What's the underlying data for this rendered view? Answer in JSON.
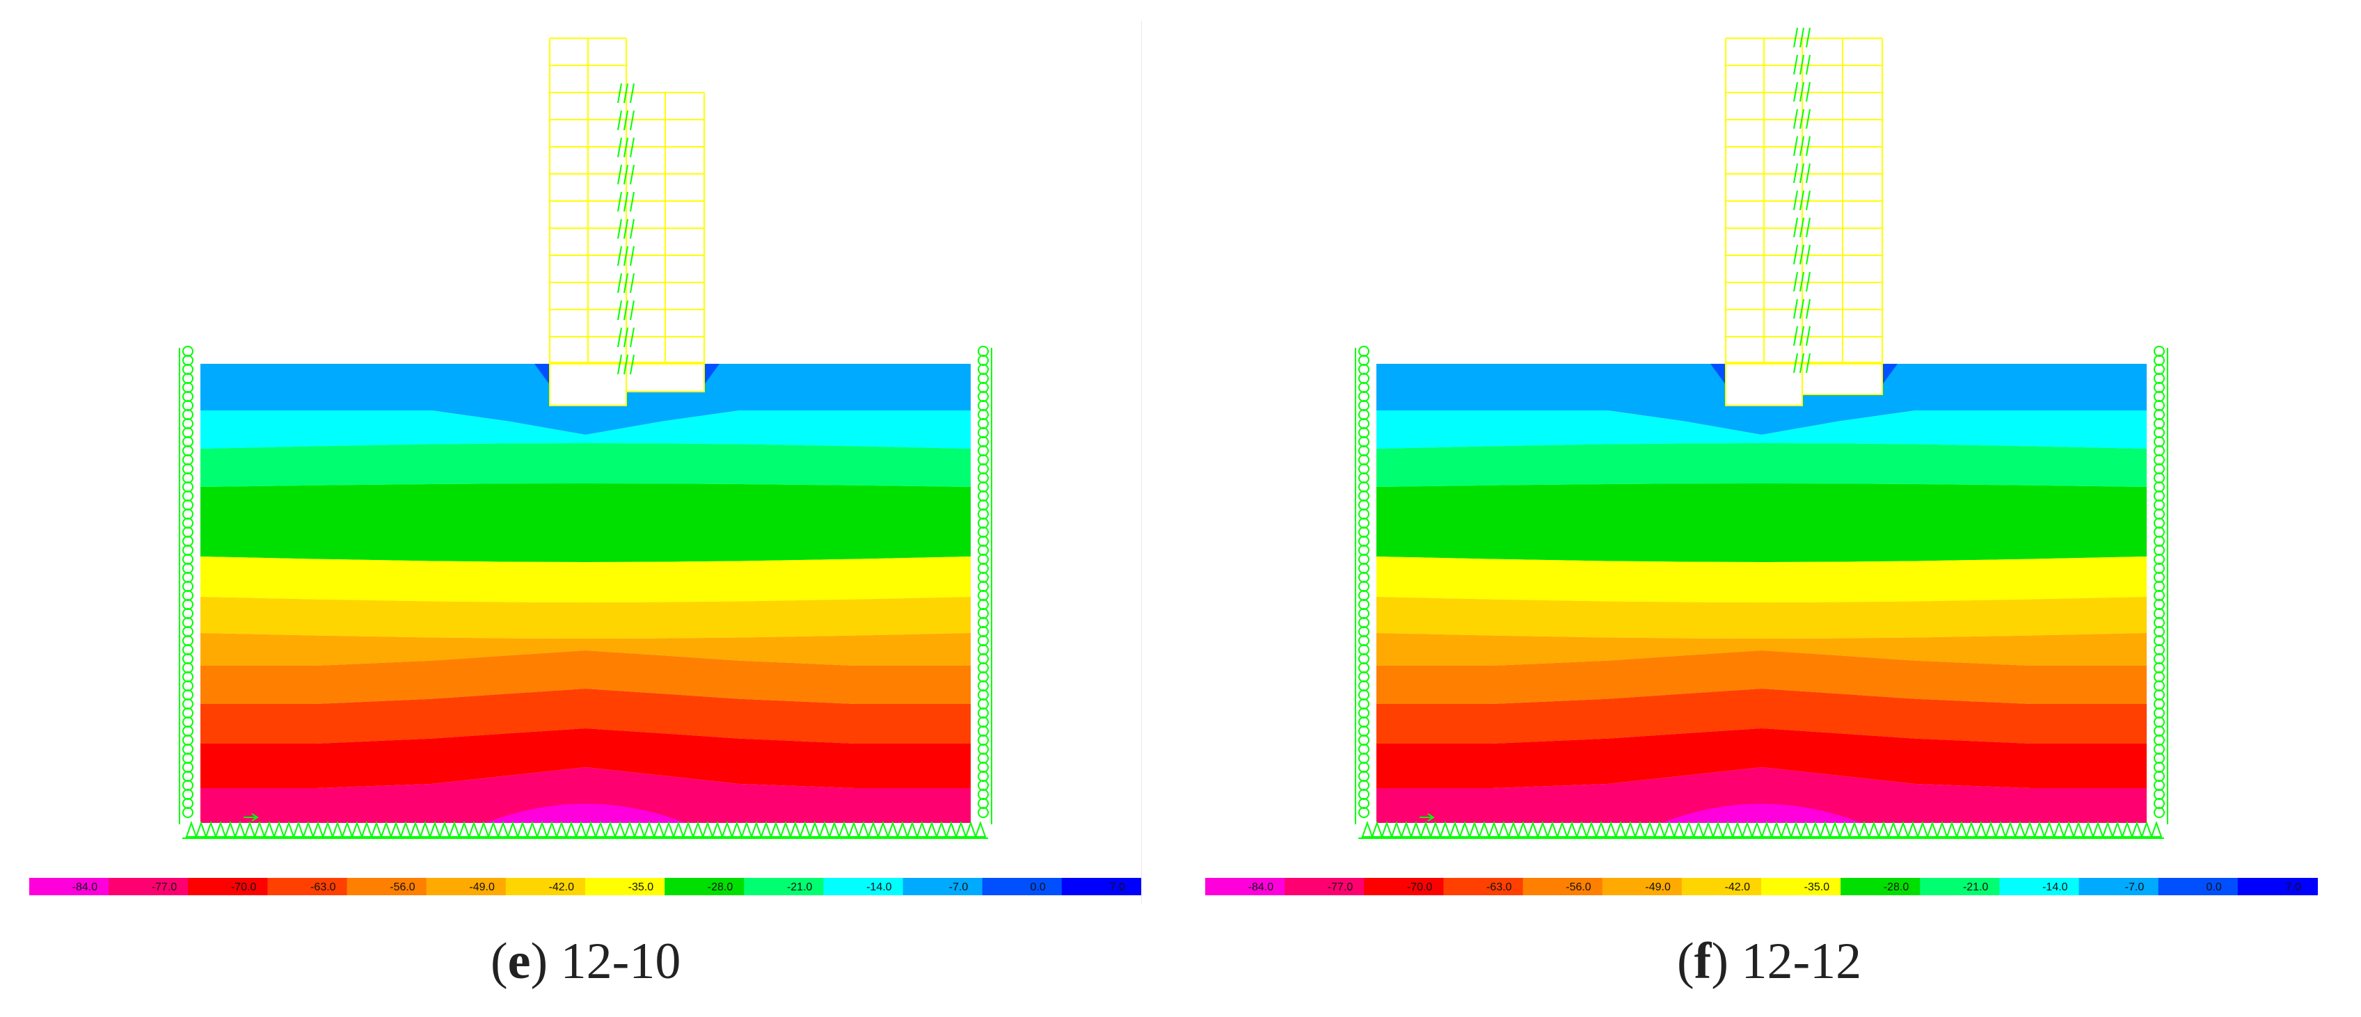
{
  "panels": [
    {
      "id": "e",
      "caption_letter": "e",
      "caption_text": "12-10",
      "foundation": "stepped"
    },
    {
      "id": "f",
      "caption_letter": "f",
      "caption_text": "12-12",
      "foundation": "flat"
    }
  ],
  "legend": {
    "labels": [
      "-84.0",
      "-77.0",
      "-70.0",
      "-63.0",
      "-56.0",
      "-49.0",
      "-42.0",
      "-35.0",
      "-28.0",
      "-21.0",
      "-14.0",
      "-7.0",
      "0.0",
      "7.0"
    ],
    "colors": [
      "#ff00dd",
      "#ff0070",
      "#ff0000",
      "#ff4000",
      "#ff8000",
      "#ffaa00",
      "#ffd500",
      "#ffff00",
      "#00e000",
      "#00ff70",
      "#00ffff",
      "#00aaff",
      "#0050ff",
      "#0000ff"
    ]
  },
  "contour_colors": {
    "band_0": "#00aaff",
    "band_1": "#00ffff",
    "band_2": "#00ff70",
    "band_3": "#00e000",
    "band_4": "#ffff00",
    "band_5": "#ffd500",
    "band_6": "#ffaa00",
    "band_7": "#ff8000",
    "band_8": "#ff4000",
    "band_9": "#ff0000",
    "band_10": "#ff0070",
    "band_11": "#ff00dd",
    "corner": "#0050ff",
    "structure": "#ffff00",
    "supports": "#00ff00"
  }
}
